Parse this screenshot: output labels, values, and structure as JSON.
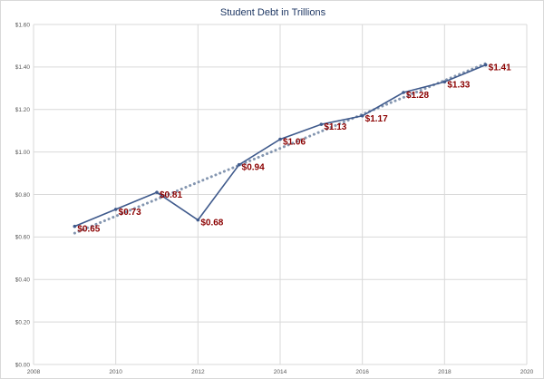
{
  "chart_data": {
    "type": "line",
    "title": "Student Debt in Trillions",
    "xlabel": "",
    "ylabel": "",
    "xlim": [
      2008,
      2020
    ],
    "ylim": [
      0,
      1.6
    ],
    "x_ticks": [
      "2008",
      "2010",
      "2012",
      "2014",
      "2016",
      "2018",
      "2020"
    ],
    "y_ticks": [
      "$0.00",
      "$0.20",
      "$0.40",
      "$0.60",
      "$0.80",
      "$1.00",
      "$1.20",
      "$1.40",
      "$1.60"
    ],
    "grid": true,
    "legend": "none",
    "series": [
      {
        "x": [
          2009,
          2010,
          2011,
          2012,
          2013,
          2014,
          2015,
          2016,
          2017,
          2018,
          2019
        ],
        "values": [
          0.65,
          0.73,
          0.81,
          0.68,
          0.94,
          1.06,
          1.13,
          1.17,
          1.28,
          1.33,
          1.41
        ],
        "labels": [
          "$0.65",
          "$0.73",
          "$0.81",
          "$0.68",
          "$0.94",
          "$1.06",
          "$1.13",
          "$1.17",
          "$1.28",
          "$1.33",
          "$1.41"
        ],
        "color": "#3f5a8c"
      }
    ],
    "trendline": {
      "type": "linear",
      "style": "dotted",
      "color": "#8496b0"
    },
    "label_color": "#8b0000"
  }
}
